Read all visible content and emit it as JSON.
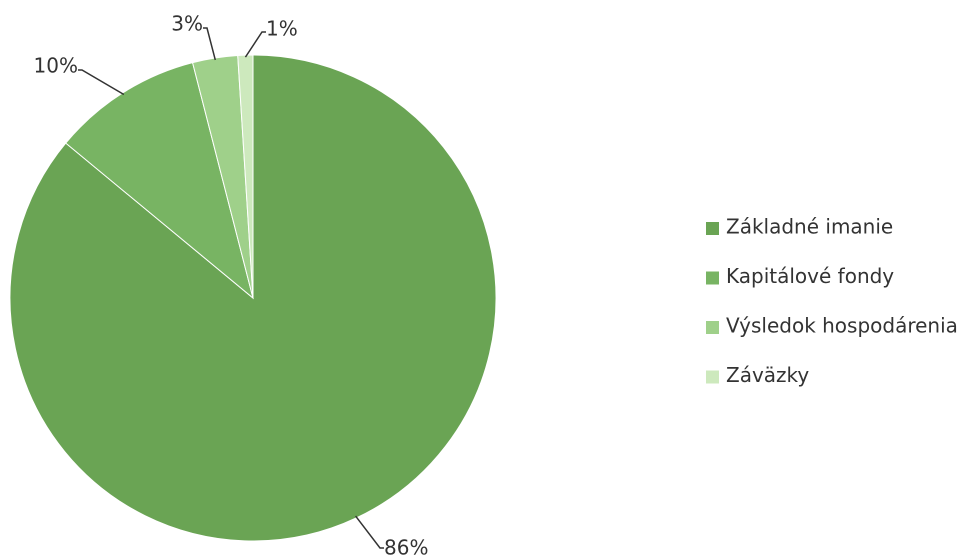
{
  "chart_data": {
    "type": "pie",
    "categories": [
      "Základné imanie",
      "Kapitálové fondy",
      "Výsledok hospodárenia",
      "Záväzky"
    ],
    "values": [
      86,
      10,
      3,
      1
    ],
    "value_labels": [
      "86%",
      "10%",
      "3%",
      "1%"
    ],
    "colors": [
      "#6aa454",
      "#78b463",
      "#9fd08a",
      "#cde9bd"
    ],
    "legend": "right"
  }
}
